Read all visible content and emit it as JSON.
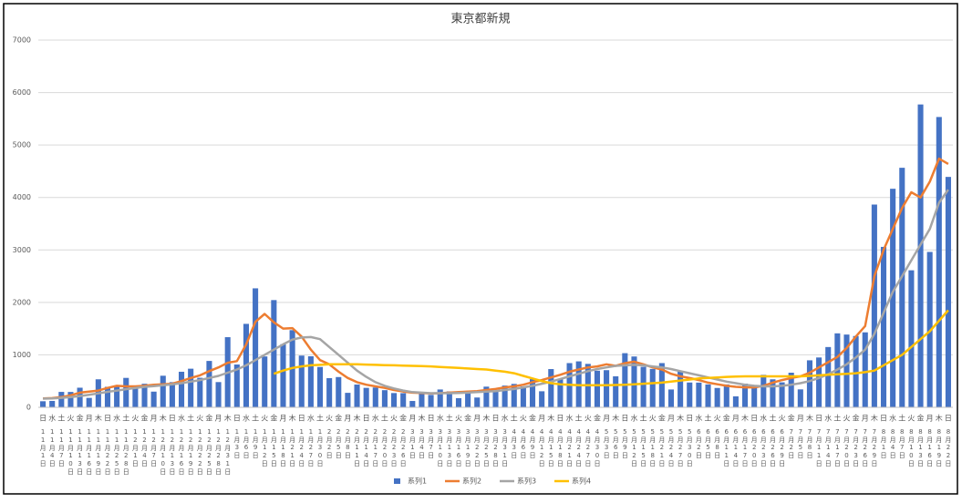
{
  "chart_data": {
    "type": "bar-line",
    "title": "東京都新規",
    "weekdays": [
      "日",
      "水",
      "土",
      "火",
      "金",
      "月",
      "木",
      "日",
      "水",
      "土",
      "火",
      "金",
      "月",
      "木",
      "日",
      "水",
      "土",
      "火",
      "金",
      "月",
      "木",
      "日",
      "水",
      "土",
      "火",
      "金",
      "月",
      "木",
      "日",
      "水",
      "土",
      "火",
      "金",
      "月",
      "木",
      "日",
      "水",
      "土",
      "火",
      "金",
      "月",
      "木",
      "日",
      "水",
      "土",
      "火",
      "金",
      "月",
      "木",
      "日",
      "水",
      "土",
      "火",
      "金",
      "月",
      "木",
      "日",
      "水",
      "土",
      "火",
      "金",
      "月",
      "木",
      "日",
      "水",
      "土",
      "火",
      "金",
      "月",
      "木",
      "日",
      "水",
      "土",
      "火",
      "金",
      "月",
      "木",
      "日",
      "水",
      "土",
      "火",
      "金",
      "月",
      "木",
      "日",
      "水",
      "土",
      "火",
      "金",
      "月",
      "木",
      "日",
      "水",
      "土",
      "火",
      "金",
      "月",
      "木",
      "日"
    ],
    "categories": [
      "11月1日",
      "11月4日",
      "11月7日",
      "11月10日",
      "11月13日",
      "11月16日",
      "11月19日",
      "11月22日",
      "11月25日",
      "11月28日",
      "12月1日",
      "12月4日",
      "12月7日",
      "12月10日",
      "12月13日",
      "12月16日",
      "12月19日",
      "12月22日",
      "12月25日",
      "12月28日",
      "12月31日",
      "1月3日",
      "1月6日",
      "1月9日",
      "1月12日",
      "1月15日",
      "1月18日",
      "1月21日",
      "1月24日",
      "1月27日",
      "1月30日",
      "2月2日",
      "2月5日",
      "2月8日",
      "2月11日",
      "2月14日",
      "2月17日",
      "2月20日",
      "2月23日",
      "2月26日",
      "3月1日",
      "3月4日",
      "3月7日",
      "3月10日",
      "3月13日",
      "3月16日",
      "3月19日",
      "3月22日",
      "3月25日",
      "3月28日",
      "3月31日",
      "4月3日",
      "4月6日",
      "4月9日",
      "4月12日",
      "4月15日",
      "4月18日",
      "4月21日",
      "4月24日",
      "4月27日",
      "4月30日",
      "5月3日",
      "5月6日",
      "5月9日",
      "5月12日",
      "5月15日",
      "5月18日",
      "5月21日",
      "5月24日",
      "5月27日",
      "5月30日",
      "6月2日",
      "6月5日",
      "6月8日",
      "6月11日",
      "6月14日",
      "6月17日",
      "6月20日",
      "6月23日",
      "6月26日",
      "6月29日",
      "7月2日",
      "7月5日",
      "7月8日",
      "7月11日",
      "7月14日",
      "7月17日",
      "7月20日",
      "7月23日",
      "7月26日",
      "7月29日",
      "8月1日",
      "8月4日",
      "8月7日",
      "8月10日",
      "8月13日",
      "8月16日",
      "8月19日",
      "8月22日"
    ],
    "series": [
      {
        "name": "系列1",
        "kind": "bar",
        "color": "#4472c4",
        "values": [
          116,
          122,
          294,
          293,
          374,
          180,
          534,
          391,
          401,
          561,
          372,
          449,
          299,
          602,
          480,
          678,
          736,
          563,
          884,
          481,
          1337,
          816,
          1591,
          2268,
          970,
          2044,
          1204,
          1471,
          986,
          973,
          769,
          556,
          577,
          276,
          434,
          371,
          378,
          327,
          272,
          270,
          121,
          279,
          237,
          340,
          304,
          175,
          303,
          187,
          394,
          313,
          414,
          446,
          399,
          537,
          306,
          729,
          543,
          843,
          876,
          828,
          698,
          708,
          591,
          1032,
          969,
          772,
          732,
          843,
          340,
          684,
          473,
          471,
          436,
          369,
          436,
          209,
          452,
          376,
          619,
          534,
          476,
          660,
          342,
          896,
          950,
          1149,
          1410,
          1387,
          1359,
          1429,
          3865,
          3058,
          4166,
          4566,
          2612,
          5773,
          2962,
          5534,
          4392
        ]
      },
      {
        "name": "系列2",
        "kind": "line",
        "color": "#ed7d31",
        "values": [
          170,
          175,
          195,
          230,
          280,
          300,
          320,
          370,
          410,
          400,
          400,
          410,
          430,
          440,
          450,
          500,
          560,
          610,
          690,
          760,
          850,
          880,
          1200,
          1630,
          1780,
          1620,
          1500,
          1510,
          1350,
          1100,
          900,
          820,
          680,
          560,
          480,
          430,
          400,
          370,
          330,
          300,
          280,
          275,
          265,
          270,
          280,
          290,
          300,
          310,
          330,
          350,
          380,
          400,
          430,
          480,
          520,
          570,
          620,
          680,
          720,
          760,
          780,
          820,
          790,
          840,
          870,
          820,
          760,
          720,
          640,
          590,
          560,
          520,
          470,
          440,
          410,
          390,
          380,
          380,
          410,
          470,
          520,
          560,
          590,
          660,
          760,
          860,
          960,
          1130,
          1350,
          1550,
          2500,
          3000,
          3400,
          3800,
          4100,
          4000,
          4300,
          4740,
          4640
        ]
      },
      {
        "name": "系列3",
        "kind": "line",
        "color": "#a5a5a5",
        "values": [
          165,
          170,
          180,
          195,
          215,
          240,
          265,
          295,
          320,
          345,
          370,
          390,
          405,
          420,
          440,
          460,
          490,
          520,
          560,
          600,
          660,
          720,
          800,
          900,
          1000,
          1100,
          1200,
          1290,
          1330,
          1340,
          1300,
          1150,
          1000,
          850,
          700,
          580,
          480,
          410,
          360,
          320,
          290,
          280,
          270,
          270,
          270,
          275,
          280,
          290,
          300,
          310,
          330,
          350,
          380,
          410,
          450,
          490,
          540,
          590,
          640,
          690,
          730,
          760,
          790,
          800,
          810,
          800,
          780,
          760,
          730,
          690,
          650,
          610,
          570,
          530,
          490,
          460,
          430,
          410,
          400,
          400,
          410,
          430,
          460,
          500,
          560,
          630,
          720,
          820,
          950,
          1100,
          1400,
          1800,
          2200,
          2500,
          2800,
          3100,
          3400,
          3900,
          4150
        ]
      },
      {
        "name": "系列4",
        "kind": "line",
        "color": "#ffc000",
        "values": [
          null,
          null,
          null,
          null,
          null,
          null,
          null,
          null,
          null,
          null,
          null,
          null,
          null,
          null,
          null,
          null,
          null,
          null,
          null,
          null,
          null,
          null,
          null,
          null,
          null,
          640,
          700,
          750,
          780,
          800,
          810,
          820,
          820,
          820,
          820,
          815,
          810,
          805,
          800,
          795,
          790,
          785,
          780,
          770,
          760,
          750,
          740,
          730,
          720,
          700,
          680,
          650,
          600,
          550,
          500,
          460,
          440,
          430,
          420,
          420,
          420,
          420,
          425,
          430,
          440,
          450,
          460,
          470,
          490,
          510,
          530,
          550,
          560,
          570,
          580,
          585,
          590,
          590,
          590,
          590,
          590,
          590,
          590,
          600,
          610,
          620,
          630,
          640,
          650,
          670,
          700,
          800,
          900,
          1000,
          1150,
          1300,
          1450,
          1650,
          1850
        ]
      }
    ],
    "ylim": [
      0,
      7000
    ],
    "yticks": [
      0,
      1000,
      2000,
      3000,
      4000,
      5000,
      6000,
      7000
    ],
    "grid": true,
    "legend": "bottom"
  }
}
